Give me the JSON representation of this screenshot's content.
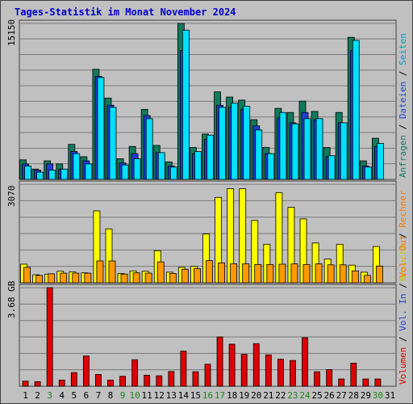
{
  "title": "Tages-Statistik im Monat November 2024",
  "colors": {
    "anfragen": "#117a5c",
    "dateien": "#1d3fd6",
    "seiten": "#00e0ff",
    "besuche": "#ffff00",
    "rechner": "#ff9900",
    "volumen": "#e00000",
    "out": "#ff9900",
    "in": "#1d3fd6",
    "weekday": "#000000",
    "weekend": "#208020",
    "plot_bg": "#c0c0c0",
    "grid": "#7a7a7a"
  },
  "chart_data": [
    {
      "type": "bar",
      "panel": "top",
      "ymax_label": "15150",
      "ylim": [
        0,
        15150
      ],
      "right_label": [
        {
          "text": "Anfragen",
          "color": "#117a5c"
        },
        {
          "text": " / ",
          "color": "#000000"
        },
        {
          "text": "Dateien",
          "color": "#1d3fd6"
        },
        {
          "text": " / ",
          "color": "#000000"
        },
        {
          "text": "Seiten",
          "color": "#00a0c0"
        }
      ],
      "categories": [
        "1",
        "2",
        "3",
        "4",
        "5",
        "6",
        "7",
        "8",
        "9",
        "10",
        "11",
        "12",
        "13",
        "14",
        "15",
        "16",
        "17",
        "18",
        "19",
        "20",
        "21",
        "22",
        "23",
        "24",
        "25",
        "26",
        "27",
        "28",
        "29",
        "30",
        "31"
      ],
      "series": [
        {
          "name": "Anfragen",
          "values": [
            1900,
            1000,
            1800,
            1500,
            3400,
            2200,
            10700,
            7900,
            2000,
            3200,
            6800,
            3300,
            1700,
            15150,
            3100,
            4400,
            8500,
            8000,
            7700,
            5800,
            3100,
            6900,
            6500,
            7600,
            6600,
            3100,
            6500,
            13800,
            1800,
            4000,
            null
          ]
        },
        {
          "name": "Dateien",
          "values": [
            1500,
            900,
            1500,
            1000,
            2700,
            1800,
            10000,
            7200,
            1600,
            2500,
            6200,
            2600,
            1300,
            12500,
            2500,
            3900,
            7200,
            7000,
            6800,
            5200,
            2500,
            6000,
            5500,
            6500,
            5800,
            2200,
            5500,
            12500,
            1300,
            3200,
            null
          ]
        },
        {
          "name": "Seiten",
          "values": [
            1300,
            700,
            900,
            1000,
            2500,
            1500,
            9900,
            7000,
            1400,
            2000,
            5900,
            2600,
            1200,
            14500,
            2700,
            4300,
            7000,
            7400,
            7100,
            4800,
            2500,
            6500,
            5400,
            5900,
            5900,
            2300,
            5500,
            13500,
            1200,
            3500,
            null
          ]
        }
      ]
    },
    {
      "type": "bar",
      "panel": "middle",
      "ymax_label": "3070",
      "ylim": [
        0,
        3070
      ],
      "right_label": [
        {
          "text": "Besuche",
          "color": "#c8c800"
        },
        {
          "text": " / ",
          "color": "#000000"
        },
        {
          "text": "Rechner",
          "color": "#ff7700"
        }
      ],
      "categories": [
        "1",
        "2",
        "3",
        "4",
        "5",
        "6",
        "7",
        "8",
        "9",
        "10",
        "11",
        "12",
        "13",
        "14",
        "15",
        "16",
        "17",
        "18",
        "19",
        "20",
        "21",
        "22",
        "23",
        "24",
        "25",
        "26",
        "27",
        "28",
        "29",
        "30",
        "31"
      ],
      "series": [
        {
          "name": "Besuche",
          "values": [
            580,
            250,
            270,
            360,
            340,
            310,
            2240,
            1680,
            290,
            370,
            360,
            1000,
            330,
            480,
            510,
            1520,
            2660,
            2930,
            2930,
            1940,
            1200,
            2810,
            2350,
            1990,
            1240,
            740,
            1200,
            550,
            330,
            1130,
            null
          ]
        },
        {
          "name": "Rechner",
          "values": [
            480,
            230,
            280,
            300,
            300,
            300,
            680,
            680,
            270,
            310,
            300,
            650,
            290,
            420,
            440,
            690,
            620,
            590,
            590,
            570,
            570,
            580,
            590,
            570,
            590,
            560,
            560,
            370,
            230,
            520,
            null
          ]
        }
      ]
    },
    {
      "type": "bar",
      "panel": "bottom",
      "ymax_label": "3.68 GB",
      "ylim": [
        0,
        3.68
      ],
      "right_label": [
        {
          "text": "Volumen",
          "color": "#e00000"
        },
        {
          "text": " / ",
          "color": "#000000"
        },
        {
          "text": "Vol. In",
          "color": "#1d3fd6"
        },
        {
          "text": " / ",
          "color": "#000000"
        },
        {
          "text": "Vol. Out",
          "color": "#ff7700"
        }
      ],
      "categories": [
        "1",
        "2",
        "3",
        "4",
        "5",
        "6",
        "7",
        "8",
        "9",
        "10",
        "11",
        "12",
        "13",
        "14",
        "15",
        "16",
        "17",
        "18",
        "19",
        "20",
        "21",
        "22",
        "23",
        "24",
        "25",
        "26",
        "27",
        "28",
        "29",
        "30",
        "31"
      ],
      "series": [
        {
          "name": "Volumen",
          "values": [
            0.19,
            0.17,
            3.68,
            0.23,
            0.51,
            1.13,
            0.44,
            0.23,
            0.37,
            0.99,
            0.41,
            0.39,
            0.55,
            1.31,
            0.54,
            0.82,
            1.84,
            1.57,
            1.19,
            1.59,
            1.17,
            1.01,
            0.96,
            1.81,
            0.54,
            0.62,
            0.27,
            0.86,
            0.27,
            0.27,
            null
          ]
        }
      ]
    }
  ],
  "weekend_days": [
    "3",
    "9",
    "10",
    "16",
    "17",
    "23",
    "24",
    "30"
  ]
}
